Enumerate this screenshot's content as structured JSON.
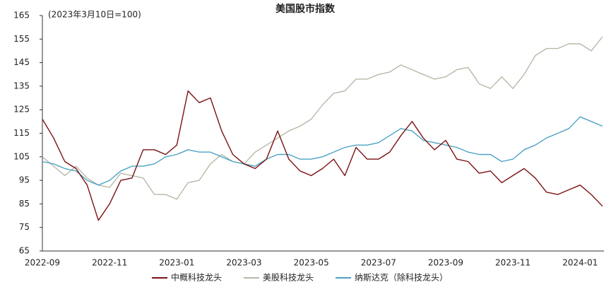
{
  "chart_data": {
    "type": "line",
    "title": "美国股市指数",
    "subtitle": "(2023年3月10日=100)",
    "categories": [
      "2022-09",
      null,
      null,
      null,
      null,
      null,
      "2022-11",
      null,
      null,
      null,
      null,
      null,
      "2023-01",
      null,
      null,
      null,
      null,
      null,
      "2023-03",
      null,
      null,
      null,
      null,
      null,
      "2023-05",
      null,
      null,
      null,
      null,
      null,
      "2023-07",
      null,
      null,
      null,
      null,
      null,
      "2023-09",
      null,
      null,
      null,
      null,
      null,
      "2023-11",
      null,
      null,
      null,
      null,
      null,
      "2024-01",
      null,
      null
    ],
    "ylim": [
      65,
      165
    ],
    "yticks": [
      65,
      75,
      85,
      95,
      105,
      115,
      125,
      135,
      145,
      155,
      165
    ],
    "series": [
      {
        "name": "中概科技龙头",
        "color": "#7b1113",
        "values": [
          121,
          113,
          103,
          100,
          93,
          78,
          85,
          95,
          96,
          108,
          108,
          106,
          110,
          133,
          128,
          130,
          116,
          106,
          102,
          100,
          104,
          116,
          104,
          99,
          97,
          100,
          104,
          97,
          109,
          104,
          104,
          107,
          114,
          120,
          113,
          108,
          112,
          104,
          103,
          98,
          99,
          94,
          97,
          100,
          96,
          90,
          89,
          91,
          93,
          89,
          84
        ]
      },
      {
        "name": "美股科技龙头",
        "color": "#b9b8a7",
        "values": [
          105,
          101,
          97,
          101,
          96,
          93,
          92,
          98,
          97,
          96,
          89,
          89,
          87,
          94,
          95,
          102,
          106,
          103,
          102,
          107,
          110,
          113,
          116,
          118,
          121,
          127,
          132,
          133,
          138,
          138,
          140,
          141,
          144,
          142,
          140,
          138,
          139,
          142,
          143,
          136,
          134,
          139,
          134,
          140,
          148,
          151,
          151,
          153,
          153,
          150,
          156
        ]
      },
      {
        "name": "纳斯达克（除科技龙头）",
        "color": "#4ca3c2",
        "values": [
          103,
          102,
          100,
          99,
          95,
          93,
          95,
          99,
          101,
          101,
          102,
          105,
          106,
          108,
          107,
          107,
          105,
          103,
          102,
          101,
          104,
          106,
          106,
          104,
          104,
          105,
          107,
          109,
          110,
          110,
          111,
          114,
          117,
          116,
          112,
          111,
          110,
          109,
          107,
          106,
          106,
          103,
          104,
          108,
          110,
          113,
          115,
          117,
          122,
          120,
          118
        ]
      }
    ]
  }
}
